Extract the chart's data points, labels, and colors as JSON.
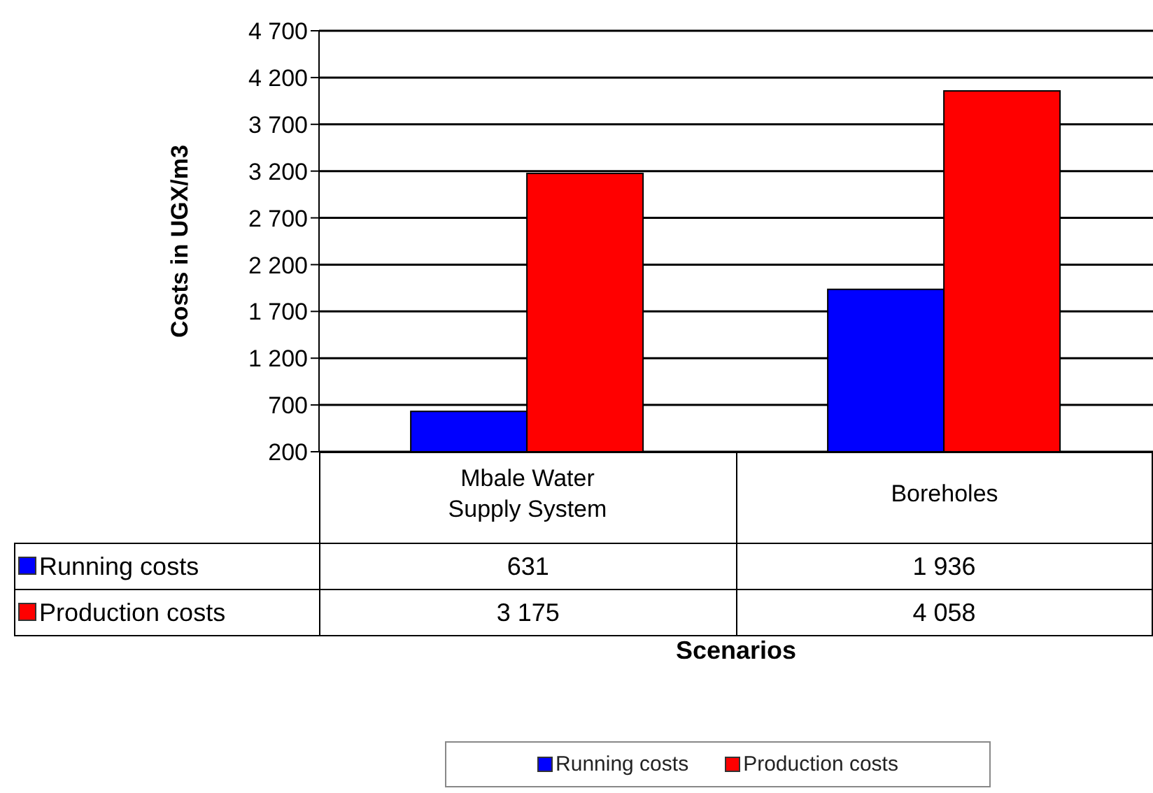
{
  "chart_data": {
    "type": "bar",
    "ylabel": "Costs in UGX/m3",
    "xlabel": "Scenarios",
    "categories": [
      "Mbale Water Supply System",
      "Boreholes"
    ],
    "series": [
      {
        "name": "Running costs",
        "color": "#0000ff",
        "values": [
          631,
          1936
        ],
        "value_labels": [
          "631",
          "1 936"
        ]
      },
      {
        "name": "Production costs",
        "color": "#ff0000",
        "values": [
          3175,
          4058
        ],
        "value_labels": [
          "3 175",
          "4 058"
        ]
      }
    ],
    "ylim": [
      200,
      4700
    ],
    "yticks": [
      {
        "value": 200,
        "label": "200"
      },
      {
        "value": 700,
        "label": "700"
      },
      {
        "value": 1200,
        "label": "1 200"
      },
      {
        "value": 1700,
        "label": "1 700"
      },
      {
        "value": 2200,
        "label": "2 200"
      },
      {
        "value": 2700,
        "label": "2 700"
      },
      {
        "value": 3200,
        "label": "3 200"
      },
      {
        "value": 3700,
        "label": "3 700"
      },
      {
        "value": 4200,
        "label": "4 200"
      },
      {
        "value": 4700,
        "label": "4 700"
      }
    ],
    "grid": "y",
    "legend": "bottom"
  }
}
